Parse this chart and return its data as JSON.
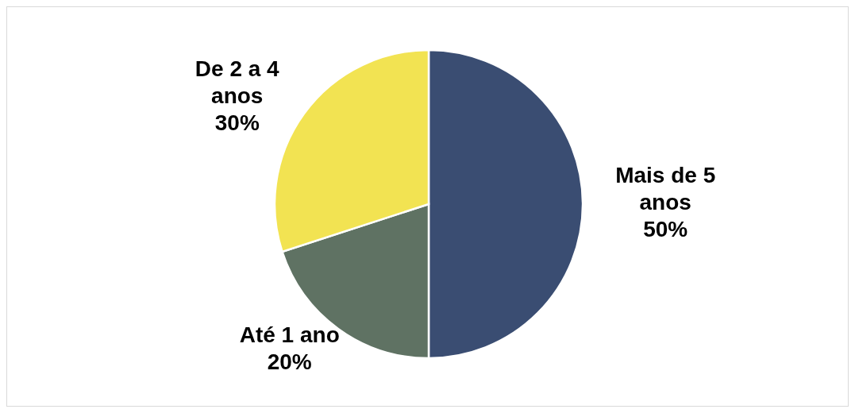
{
  "chart_data": {
    "type": "pie",
    "categories": [
      "Mais de 5 anos",
      "Até 1 ano",
      "De 2 a 4 anos"
    ],
    "values": [
      50,
      20,
      30
    ],
    "colors": [
      "#3a4d72",
      "#5f7263",
      "#f2e352"
    ],
    "value_labels": [
      "50%",
      "20%",
      "30%"
    ]
  }
}
